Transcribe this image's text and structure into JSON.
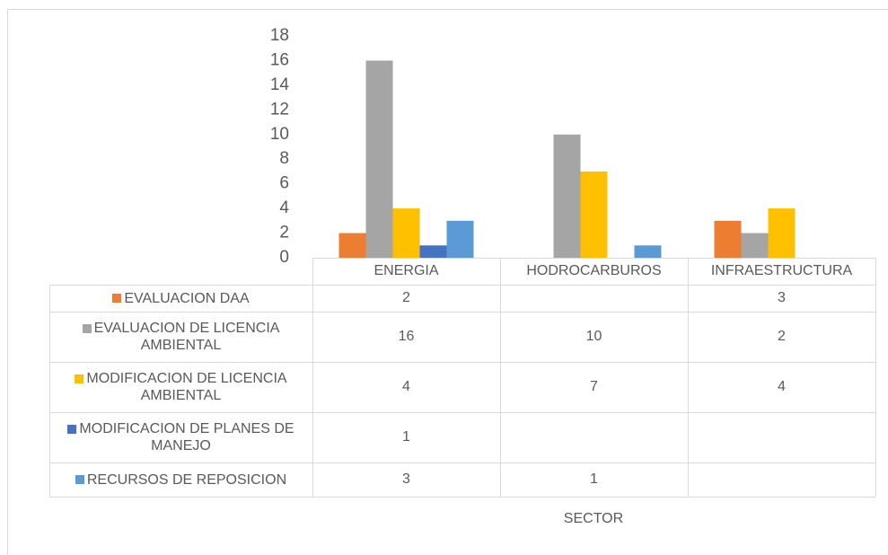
{
  "chart_data": {
    "type": "bar",
    "categories": [
      "ENERGIA",
      "HODROCARBUROS",
      "INFRAESTRUCTURA"
    ],
    "series": [
      {
        "name": "EVALUACION DAA",
        "color": "#ed7d31",
        "values": [
          2,
          null,
          3
        ]
      },
      {
        "name": "EVALUACION DE LICENCIA AMBIENTAL",
        "color": "#a5a5a5",
        "values": [
          16,
          10,
          2
        ]
      },
      {
        "name": "MODIFICACION DE LICENCIA AMBIENTAL",
        "color": "#ffc000",
        "values": [
          4,
          7,
          4
        ]
      },
      {
        "name": "MODIFICACION DE PLANES DE MANEJO",
        "color": "#4472c4",
        "values": [
          1,
          null,
          null
        ]
      },
      {
        "name": "RECURSOS DE REPOSICION",
        "color": "#5b9bd5",
        "values": [
          3,
          1,
          null
        ]
      }
    ],
    "xlabel": "SECTOR",
    "ylim": [
      0,
      18
    ],
    "yticks": [
      0,
      2,
      4,
      6,
      8,
      10,
      12,
      14,
      16,
      18
    ],
    "grid": false
  }
}
